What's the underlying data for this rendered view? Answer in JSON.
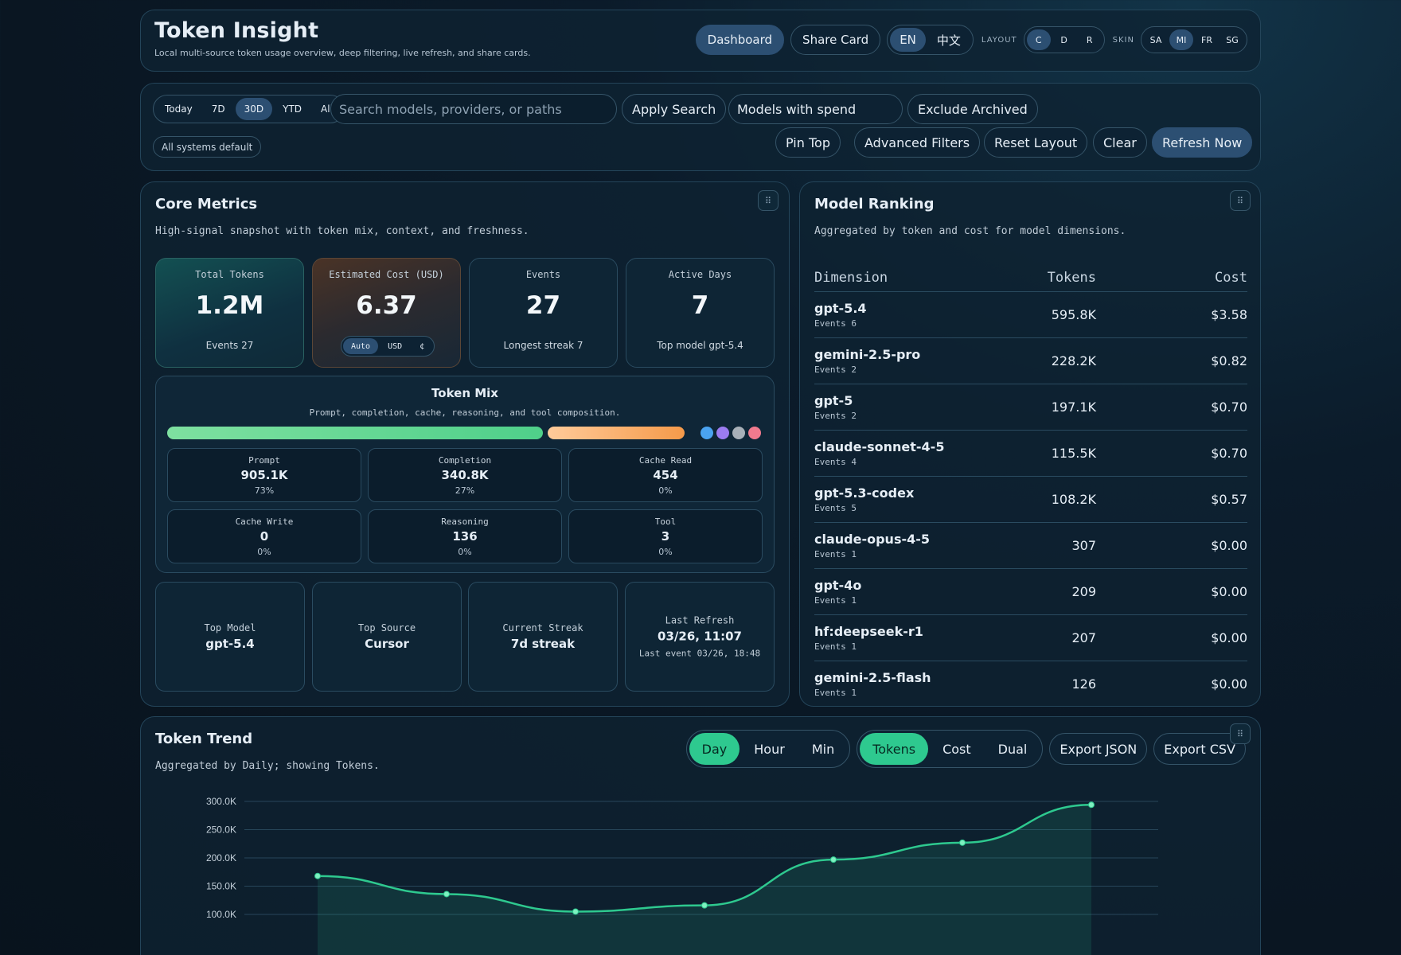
{
  "app": {
    "title": "Token Insight",
    "subtitle": "Local multi-source token usage overview, deep filtering, live refresh, and share cards."
  },
  "header": {
    "dashboard_label": "Dashboard",
    "share_card_label": "Share Card",
    "languages": [
      "EN",
      "中文"
    ],
    "layout_label": "LAYOUT",
    "layout_options": [
      "C",
      "D",
      "R"
    ],
    "skin_label": "SKIN",
    "skin_options": [
      "SA",
      "MI",
      "FR",
      "SG"
    ]
  },
  "toolbar": {
    "ranges": [
      "Today",
      "7D",
      "30D",
      "YTD",
      "All"
    ],
    "search_placeholder": "Search models, providers, or paths",
    "apply_search": "Apply Search",
    "models_select": "Models with spend",
    "exclude_archived": "Exclude Archived",
    "systems_badge": "All systems default",
    "pin_top": "Pin Top",
    "advanced_filters": "Advanced Filters",
    "reset_layout": "Reset Layout",
    "clear": "Clear",
    "refresh_now": "Refresh Now"
  },
  "core": {
    "title": "Core Metrics",
    "subtitle": "High-signal snapshot with token mix, context, and freshness.",
    "kpis": {
      "total_tokens": {
        "label": "Total Tokens",
        "value": "1.2M",
        "foot": "Events 27"
      },
      "cost": {
        "label": "Estimated Cost (USD)",
        "value": "6.37",
        "currency_options": [
          "Auto",
          "USD",
          "¢"
        ]
      },
      "events": {
        "label": "Events",
        "value": "27",
        "foot": "Longest streak 7"
      },
      "active_days": {
        "label": "Active Days",
        "value": "7",
        "foot": "Top model gpt-5.4"
      }
    },
    "mix": {
      "title": "Token Mix",
      "subtitle": "Prompt, completion, cache, reasoning, and tool composition.",
      "colors": {
        "prompt": "#4fd08a",
        "completion": "#f59a4a",
        "cache_read": "#4aa3f0",
        "cache_write": "#9b7cf0",
        "reasoning": "#a8b0b8",
        "tool": "#f07a8e"
      },
      "shares": {
        "prompt": 73,
        "completion": 27
      },
      "cells": [
        {
          "label": "Prompt",
          "value": "905.1K",
          "pct": "73%"
        },
        {
          "label": "Completion",
          "value": "340.8K",
          "pct": "27%"
        },
        {
          "label": "Cache Read",
          "value": "454",
          "pct": "0%"
        },
        {
          "label": "Cache Write",
          "value": "0",
          "pct": "0%"
        },
        {
          "label": "Reasoning",
          "value": "136",
          "pct": "0%"
        },
        {
          "label": "Tool",
          "value": "3",
          "pct": "0%"
        }
      ]
    },
    "info": {
      "top_model": {
        "label": "Top Model",
        "value": "gpt-5.4"
      },
      "top_source": {
        "label": "Top Source",
        "value": "Cursor"
      },
      "streak": {
        "label": "Current Streak",
        "value": "7d streak"
      },
      "last_refresh": {
        "label": "Last Refresh",
        "value": "03/26, 11:07",
        "foot": "Last event 03/26, 18:48"
      }
    }
  },
  "ranking": {
    "title": "Model Ranking",
    "subtitle": "Aggregated by token and cost for model dimensions.",
    "columns": [
      "Dimension",
      "Tokens",
      "Cost"
    ],
    "rows": [
      {
        "name": "gpt-5.4",
        "events": "Events 6",
        "tokens": "595.8K",
        "cost": "$3.58"
      },
      {
        "name": "gemini-2.5-pro",
        "events": "Events 2",
        "tokens": "228.2K",
        "cost": "$0.82"
      },
      {
        "name": "gpt-5",
        "events": "Events 2",
        "tokens": "197.1K",
        "cost": "$0.70"
      },
      {
        "name": "claude-sonnet-4-5",
        "events": "Events 4",
        "tokens": "115.5K",
        "cost": "$0.70"
      },
      {
        "name": "gpt-5.3-codex",
        "events": "Events 5",
        "tokens": "108.2K",
        "cost": "$0.57"
      },
      {
        "name": "claude-opus-4-5",
        "events": "Events 1",
        "tokens": "307",
        "cost": "$0.00"
      },
      {
        "name": "gpt-4o",
        "events": "Events 1",
        "tokens": "209",
        "cost": "$0.00"
      },
      {
        "name": "hf:deepseek-r1",
        "events": "Events 1",
        "tokens": "207",
        "cost": "$0.00"
      },
      {
        "name": "gemini-2.5-flash",
        "events": "Events 1",
        "tokens": "126",
        "cost": "$0.00"
      }
    ]
  },
  "trend": {
    "title": "Token Trend",
    "subtitle": "Aggregated by Daily; showing Tokens.",
    "granularity": [
      "Day",
      "Hour",
      "Min"
    ],
    "metrics": [
      "Tokens",
      "Cost",
      "Dual"
    ],
    "export_json": "Export JSON",
    "export_csv": "Export CSV",
    "line_color": "#2ec98f"
  },
  "chart_data": {
    "type": "area",
    "title": "Token Trend",
    "xlabel": "",
    "ylabel": "Tokens",
    "ylim": [
      0,
      300000
    ],
    "grid": true,
    "yticks": [
      {
        "value": 300000,
        "label": "300.0K"
      },
      {
        "value": 250000,
        "label": "250.0K"
      },
      {
        "value": 200000,
        "label": "200.0K"
      },
      {
        "value": 150000,
        "label": "150.0K"
      },
      {
        "value": 100000,
        "label": "100.0K"
      }
    ],
    "series": [
      {
        "name": "Tokens",
        "values": [
          168000,
          136000,
          105000,
          116000,
          197000,
          227000,
          294000
        ]
      }
    ]
  }
}
